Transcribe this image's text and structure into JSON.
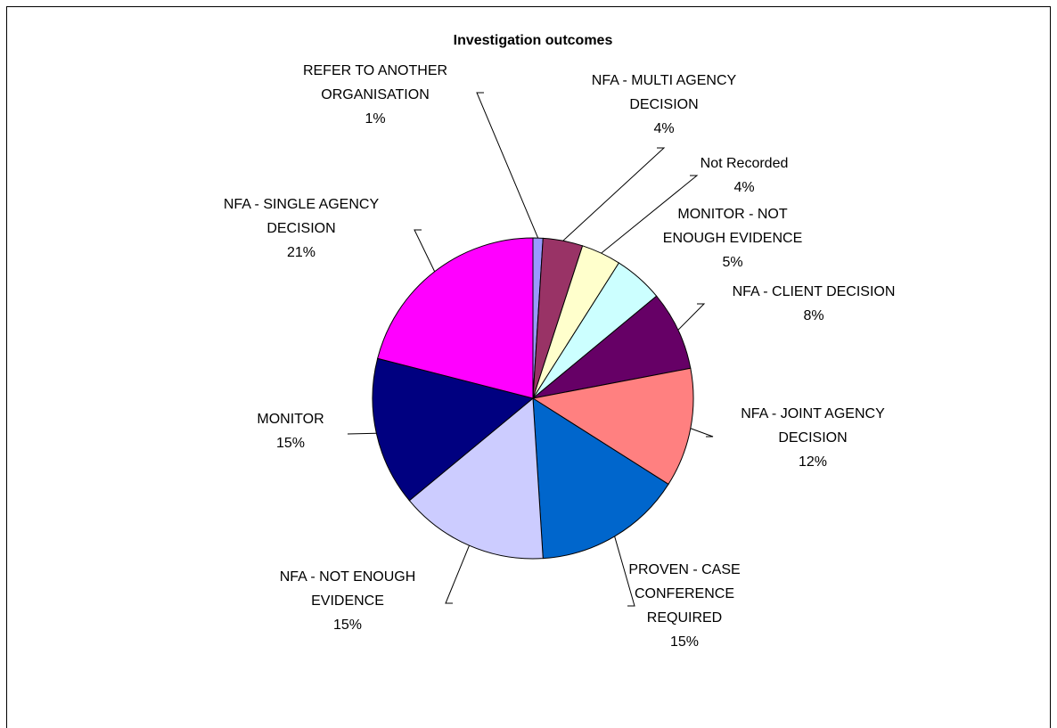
{
  "chart_data": {
    "type": "pie",
    "title": "Investigation outcomes",
    "categories": [
      "REFER TO ANOTHER ORGANISATION",
      "NFA - MULTI AGENCY DECISION",
      "Not Recorded",
      "MONITOR - NOT ENOUGH EVIDENCE",
      "NFA - CLIENT DECISION",
      "NFA - JOINT AGENCY DECISION",
      "PROVEN - CASE CONFERENCE REQUIRED",
      "NFA - NOT ENOUGH EVIDENCE",
      "MONITOR",
      "NFA - SINGLE AGENCY DECISION"
    ],
    "values": [
      1,
      4,
      4,
      5,
      8,
      12,
      15,
      15,
      15,
      21
    ],
    "value_labels": [
      "1%",
      "4%",
      "4%",
      "5%",
      "8%",
      "12%",
      "15%",
      "15%",
      "15%",
      "21%"
    ],
    "colors": [
      "#9999ff",
      "#993366",
      "#ffffcc",
      "#ccffff",
      "#660066",
      "#ff8080",
      "#0066cc",
      "#ccccff",
      "#000080",
      "#ff00ff"
    ]
  }
}
